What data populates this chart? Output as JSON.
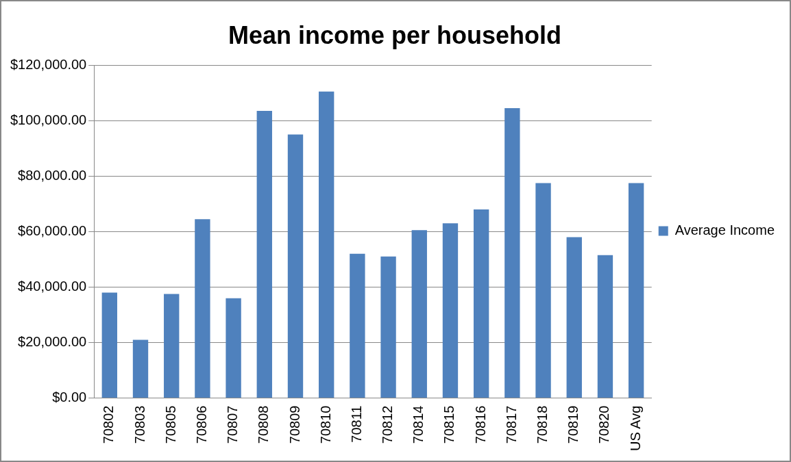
{
  "chart_data": {
    "type": "bar",
    "title": "Mean income per household",
    "categories": [
      "70802",
      "70803",
      "70805",
      "70806",
      "70807",
      "70808",
      "70809",
      "70810",
      "70811",
      "70812",
      "70814",
      "70815",
      "70816",
      "70817",
      "70818",
      "70819",
      "70820",
      "US Avg"
    ],
    "series": [
      {
        "name": "Average Income",
        "color": "#4f81bd",
        "values": [
          38000,
          21000,
          37500,
          64500,
          36000,
          103500,
          95000,
          110500,
          52000,
          51000,
          60500,
          63000,
          68000,
          104500,
          77500,
          58000,
          51500,
          77500
        ]
      }
    ],
    "ylim": [
      0,
      120000
    ],
    "yticks": [
      {
        "value": 0,
        "label": "$0.00"
      },
      {
        "value": 20000,
        "label": "$20,000.00"
      },
      {
        "value": 40000,
        "label": "$40,000.00"
      },
      {
        "value": 60000,
        "label": "$60,000.00"
      },
      {
        "value": 80000,
        "label": "$80,000.00"
      },
      {
        "value": 100000,
        "label": "$100,000.00"
      },
      {
        "value": 120000,
        "label": "$120,000.00"
      }
    ],
    "grid": "y",
    "legend": "right"
  }
}
